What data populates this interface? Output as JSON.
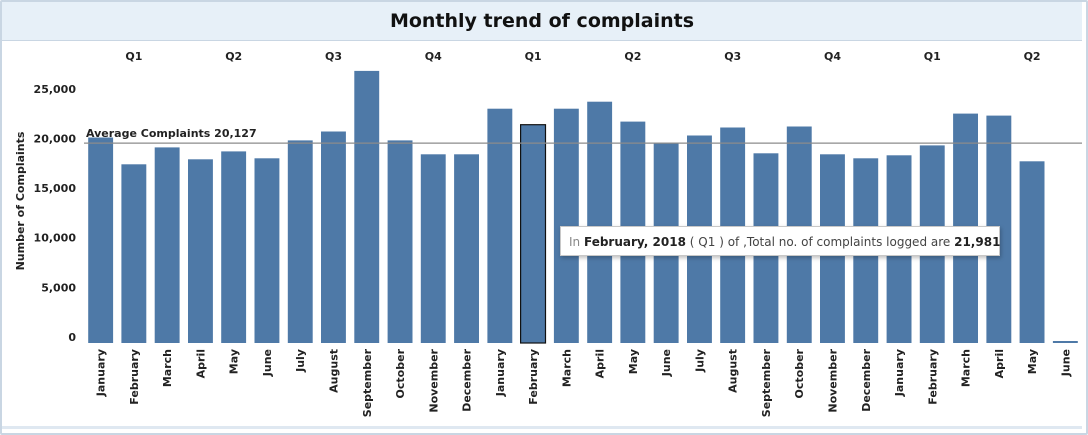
{
  "page": {
    "title": "Monthly trend of complaints"
  },
  "chart_data": {
    "type": "bar",
    "title": "Monthly trend of complaints",
    "xlabel": "",
    "ylabel": "Number of Complaints",
    "ylim": [
      0,
      28500
    ],
    "yticks": [
      0,
      5000,
      10000,
      15000,
      20000,
      25000
    ],
    "ytick_labels": [
      "0",
      "5,000",
      "10,000",
      "15,000",
      "20,000",
      "25,000"
    ],
    "categories": [
      "January",
      "February",
      "March",
      "April",
      "May",
      "June",
      "July",
      "August",
      "September",
      "October",
      "November",
      "December",
      "January",
      "February",
      "March",
      "April",
      "May",
      "June",
      "July",
      "August",
      "September",
      "October",
      "November",
      "December",
      "January",
      "February",
      "March",
      "April",
      "May",
      "June"
    ],
    "quarters": [
      "Q1",
      "Q1",
      "Q1",
      "Q2",
      "Q2",
      "Q2",
      "Q3",
      "Q3",
      "Q3",
      "Q4",
      "Q4",
      "Q4",
      "Q1",
      "Q1",
      "Q1",
      "Q2",
      "Q2",
      "Q2",
      "Q3",
      "Q3",
      "Q3",
      "Q4",
      "Q4",
      "Q4",
      "Q1",
      "Q1",
      "Q1",
      "Q2",
      "Q2",
      "Q2"
    ],
    "values": [
      20700,
      18000,
      19700,
      18500,
      19300,
      18600,
      20400,
      21300,
      27400,
      20400,
      19000,
      19000,
      23600,
      21981,
      23600,
      24300,
      22300,
      20100,
      20900,
      21700,
      19100,
      21800,
      19000,
      18600,
      18900,
      19900,
      23100,
      22900,
      18300,
      200
    ],
    "bar_color": "#4e79a7",
    "highlight_index": 13,
    "reference_line": {
      "value": 20127,
      "label": "Average Complaints 20,127"
    },
    "grid": false,
    "legend": "none"
  },
  "tooltip": {
    "prefix": "In",
    "month": "February, 2018",
    "quarter_open": "(",
    "quarter": "Q1",
    "quarter_close": ")",
    "middle": "of ,Total no. of complaints logged are",
    "value": "21,981"
  }
}
